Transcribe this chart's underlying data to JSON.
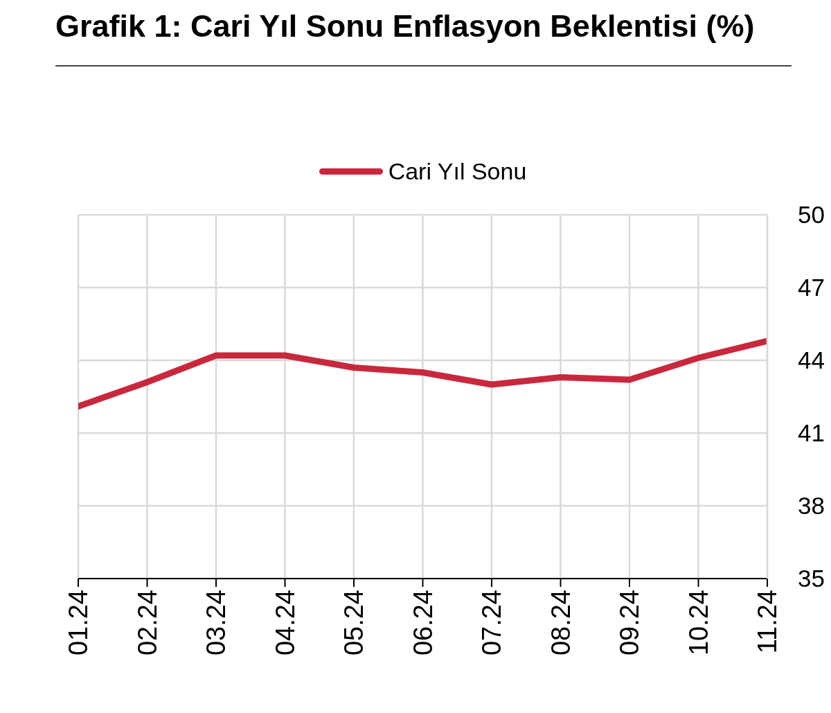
{
  "chart_data": {
    "type": "line",
    "title": "Grafik 1: Cari Yıl Sonu Enflasyon Beklentisi (%)",
    "categories": [
      "01.24",
      "02.24",
      "03.24",
      "04.24",
      "05.24",
      "06.24",
      "07.24",
      "08.24",
      "09.24",
      "10.24",
      "11.24"
    ],
    "series": [
      {
        "name": "Cari Yıl Sonu",
        "color": "#c8283e",
        "values": [
          42.1,
          43.1,
          44.2,
          44.2,
          43.7,
          43.5,
          43.0,
          43.3,
          43.2,
          44.1,
          44.8
        ]
      }
    ],
    "ylim": [
      35,
      50
    ],
    "yticks": [
      35,
      38,
      41,
      44,
      47,
      50
    ],
    "grid": true,
    "legend": "top",
    "marker": "none",
    "line_style": "solid"
  }
}
